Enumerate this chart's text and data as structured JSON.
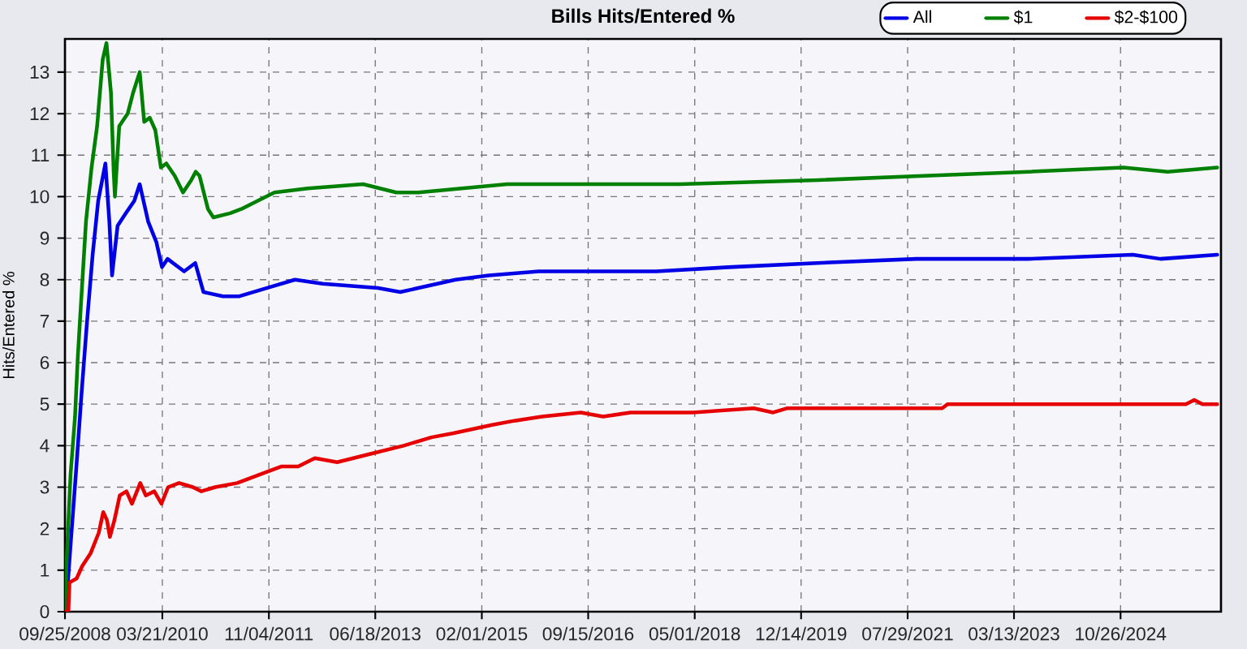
{
  "chart_data": {
    "type": "line",
    "title": "Bills Hits/Entered %",
    "ylabel": "Hits/Entered %",
    "xlim": [
      "2008-09-25",
      "2026-05-08"
    ],
    "xticks": [
      {
        "value": "2008-09-25",
        "label": "09/25/2008"
      },
      {
        "value": "2010-03-21",
        "label": "03/21/2010"
      },
      {
        "value": "2011-11-04",
        "label": "11/04/2011"
      },
      {
        "value": "2013-06-18",
        "label": "06/18/2013"
      },
      {
        "value": "2015-02-01",
        "label": "02/01/2015"
      },
      {
        "value": "2016-09-15",
        "label": "09/15/2016"
      },
      {
        "value": "2018-05-01",
        "label": "05/01/2018"
      },
      {
        "value": "2019-12-14",
        "label": "12/14/2019"
      },
      {
        "value": "2021-07-29",
        "label": "07/29/2021"
      },
      {
        "value": "2023-03-13",
        "label": "03/13/2023"
      },
      {
        "value": "2024-10-26",
        "label": "10/26/2024"
      }
    ],
    "ylim": [
      0,
      13.8
    ],
    "yticks": [
      0,
      1,
      2,
      3,
      4,
      5,
      6,
      7,
      8,
      9,
      10,
      11,
      12,
      13
    ],
    "grid": true,
    "legend": "top right",
    "series": [
      {
        "name": "All",
        "color": "#0000e6",
        "x": [
          "2008-10-01",
          "2008-10-26",
          "2008-11-26",
          "2008-12-27",
          "2009-01-26",
          "2009-02-26",
          "2009-03-29",
          "2009-05-08",
          "2009-05-30",
          "2009-06-14",
          "2009-07-15",
          "2009-08-30",
          "2009-10-16",
          "2009-11-15",
          "2010-01-01",
          "2010-02-16",
          "2010-03-19",
          "2010-04-19",
          "2010-07-20",
          "2010-09-20",
          "2010-11-05",
          "2011-02-21",
          "2011-05-24",
          "2011-10-26",
          "2012-03-28",
          "2012-08-29",
          "2013-07-03",
          "2013-11-04",
          "2014-09-08",
          "2015-03-12",
          "2015-12-15",
          "2016-10-18",
          "2017-09-29",
          "2018-11-04",
          "2020-03-11",
          "2021-09-17",
          "2023-05-27",
          "2025-01-02",
          "2025-06-05",
          "2026-04-17"
        ],
        "values": [
          0.1,
          1.6,
          3.4,
          5.3,
          7.0,
          8.6,
          9.9,
          10.8,
          9.4,
          8.1,
          9.3,
          9.6,
          9.9,
          10.3,
          9.4,
          8.9,
          8.3,
          8.5,
          8.2,
          8.4,
          7.7,
          7.6,
          7.6,
          7.8,
          8.0,
          7.9,
          7.8,
          7.7,
          8.0,
          8.1,
          8.2,
          8.2,
          8.2,
          8.3,
          8.4,
          8.5,
          8.5,
          8.6,
          8.5,
          8.6
        ]
      },
      {
        "name": "$1",
        "color": "#008000",
        "x": [
          "2008-09-25",
          "2008-10-04",
          "2008-10-26",
          "2008-11-20",
          "2008-12-05",
          "2008-12-20",
          "2009-01-20",
          "2009-02-20",
          "2009-03-23",
          "2009-04-23",
          "2009-05-14",
          "2009-06-08",
          "2009-06-23",
          "2009-06-30",
          "2009-07-24",
          "2009-09-09",
          "2009-10-09",
          "2009-11-15",
          "2009-12-10",
          "2010-01-10",
          "2010-02-10",
          "2010-03-13",
          "2010-04-12",
          "2010-05-29",
          "2010-07-14",
          "2010-08-29",
          "2010-09-23",
          "2010-10-14",
          "2010-11-30",
          "2010-12-30",
          "2011-04-02",
          "2011-06-03",
          "2011-09-03",
          "2011-12-05",
          "2012-06-07",
          "2013-04-11",
          "2013-10-13",
          "2014-02-13",
          "2015-06-22",
          "2017-01-28",
          "2018-02-08",
          "2020-03-20",
          "2021-10-27",
          "2023-06-05",
          "2024-11-11",
          "2025-07-15",
          "2026-04-17"
        ],
        "values": [
          0.0,
          1.2,
          3.3,
          4.7,
          6.1,
          7.2,
          9.4,
          10.7,
          11.7,
          13.3,
          13.7,
          12.5,
          10.6,
          10.0,
          11.7,
          12.0,
          12.5,
          13.0,
          11.8,
          11.9,
          11.6,
          10.7,
          10.8,
          10.5,
          10.1,
          10.4,
          10.6,
          10.5,
          9.7,
          9.5,
          9.6,
          9.7,
          9.9,
          10.1,
          10.2,
          10.3,
          10.1,
          10.1,
          10.3,
          10.3,
          10.3,
          10.4,
          10.5,
          10.6,
          10.7,
          10.6,
          10.7
        ]
      },
      {
        "name": "$2-$100",
        "color": "#e60000",
        "x": [
          "2008-09-25",
          "2008-10-14",
          "2008-10-20",
          "2008-11-29",
          "2008-12-30",
          "2009-02-14",
          "2009-04-01",
          "2009-04-26",
          "2009-05-17",
          "2009-06-02",
          "2009-06-27",
          "2009-07-27",
          "2009-09-02",
          "2009-10-03",
          "2009-11-18",
          "2009-12-19",
          "2010-02-04",
          "2010-03-16",
          "2010-04-22",
          "2010-06-22",
          "2010-09-07",
          "2010-10-24",
          "2011-01-09",
          "2011-05-12",
          "2011-09-12",
          "2012-01-14",
          "2012-04-15",
          "2012-07-17",
          "2012-11-18",
          "2013-05-22",
          "2013-11-23",
          "2014-04-26",
          "2014-08-27",
          "2015-03-31",
          "2015-08-01",
          "2016-01-02",
          "2016-08-05",
          "2016-12-07",
          "2017-05-10",
          "2018-04-21",
          "2019-03-25",
          "2019-07-11",
          "2019-09-26",
          "2020-05-30",
          "2022-02-06",
          "2022-03-09",
          "2025-10-25",
          "2025-12-10",
          "2026-01-25",
          "2026-04-17"
        ],
        "values": [
          0.0,
          0.0,
          0.7,
          0.8,
          1.1,
          1.4,
          1.9,
          2.4,
          2.2,
          1.8,
          2.2,
          2.8,
          2.9,
          2.6,
          3.1,
          2.8,
          2.9,
          2.6,
          3.0,
          3.1,
          3.0,
          2.9,
          3.0,
          3.1,
          3.3,
          3.5,
          3.5,
          3.7,
          3.6,
          3.8,
          4.0,
          4.2,
          4.3,
          4.5,
          4.6,
          4.7,
          4.8,
          4.7,
          4.8,
          4.8,
          4.9,
          4.8,
          4.9,
          4.9,
          4.9,
          5.0,
          5.0,
          5.1,
          5.0,
          5.0
        ]
      }
    ]
  }
}
